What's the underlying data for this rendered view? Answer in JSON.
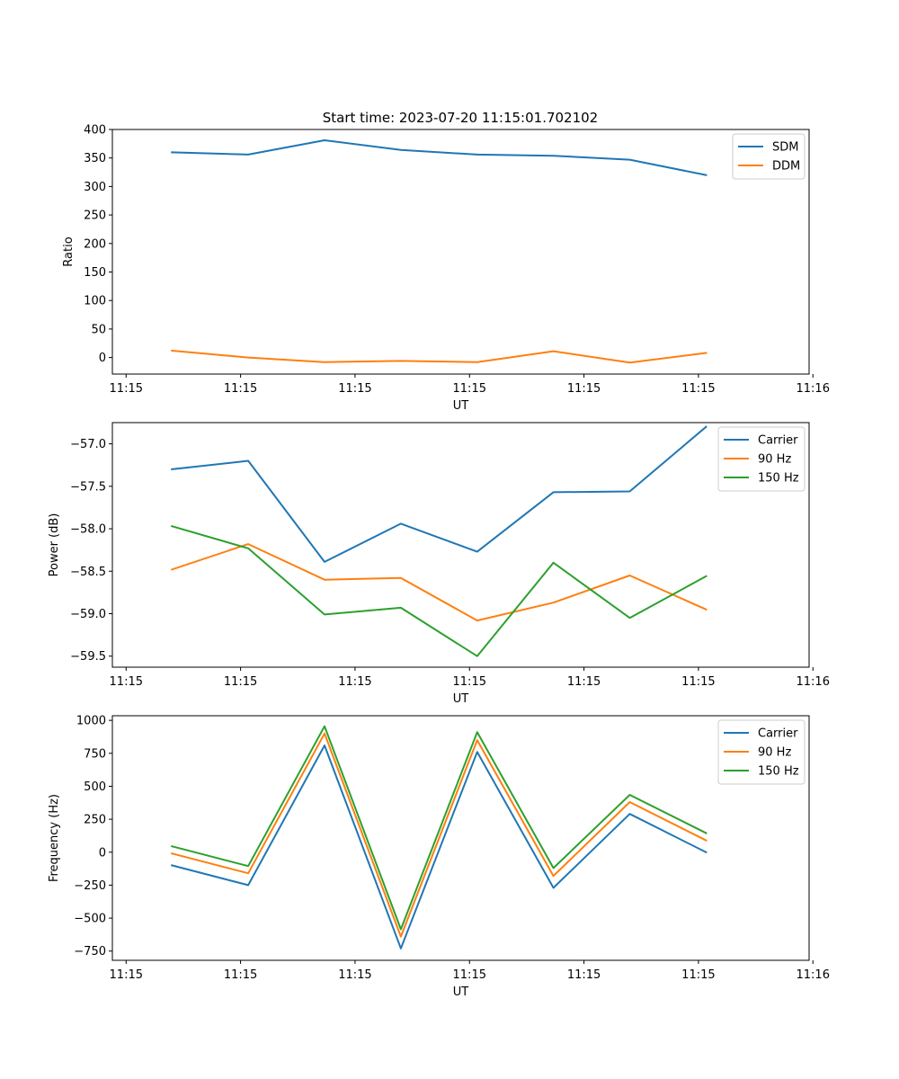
{
  "figure": {
    "title": "Start time: 2023-07-20 11:15:01.702102"
  },
  "chart_data": [
    {
      "type": "line",
      "xlabel": "UT",
      "ylabel": "Ratio",
      "x": [
        1.0,
        2.0,
        3.0,
        4.0,
        5.0,
        6.0,
        7.0,
        8.0
      ],
      "xlim": [
        0.22,
        9.35
      ],
      "x_ticks": [
        0.4,
        1.9,
        3.4,
        4.9,
        6.4,
        7.9,
        9.4
      ],
      "x_tick_labels": [
        "11:15",
        "11:15",
        "11:15",
        "11:15",
        "11:15",
        "11:15",
        "11:16"
      ],
      "ylim": [
        -29,
        400
      ],
      "y_ticks": [
        0,
        50,
        100,
        150,
        200,
        250,
        300,
        350,
        400
      ],
      "y_tick_labels": [
        "0",
        "50",
        "100",
        "150",
        "200",
        "250",
        "300",
        "350",
        "400"
      ],
      "legend": "top-right",
      "series": [
        {
          "name": "SDM",
          "color": "#1f77b4",
          "values": [
            360,
            356,
            381,
            364,
            356,
            354,
            347,
            320
          ]
        },
        {
          "name": "DDM",
          "color": "#ff7f0e",
          "values": [
            12,
            0,
            -8,
            -6,
            -8,
            11,
            -9,
            8
          ]
        }
      ]
    },
    {
      "type": "line",
      "xlabel": "UT",
      "ylabel": "Power (dB)",
      "x": [
        1.0,
        2.0,
        3.0,
        4.0,
        5.0,
        6.0,
        7.0,
        8.0
      ],
      "xlim": [
        0.22,
        9.35
      ],
      "x_ticks": [
        0.4,
        1.9,
        3.4,
        4.9,
        6.4,
        7.9,
        9.4
      ],
      "x_tick_labels": [
        "11:15",
        "11:15",
        "11:15",
        "11:15",
        "11:15",
        "11:15",
        "11:16"
      ],
      "ylim": [
        -59.63,
        -56.75
      ],
      "y_ticks": [
        -59.5,
        -59.0,
        -58.5,
        -58.0,
        -57.5,
        -57.0
      ],
      "y_tick_labels": [
        "−59.5",
        "−59.0",
        "−58.5",
        "−58.0",
        "−57.5",
        "−57.0"
      ],
      "legend": "top-right",
      "series": [
        {
          "name": "Carrier",
          "color": "#1f77b4",
          "values": [
            -57.3,
            -57.2,
            -58.39,
            -57.94,
            -58.27,
            -57.57,
            -57.56,
            -56.8
          ]
        },
        {
          "name": "90 Hz",
          "color": "#ff7f0e",
          "values": [
            -58.48,
            -58.18,
            -58.6,
            -58.58,
            -59.08,
            -58.87,
            -58.55,
            -58.95
          ]
        },
        {
          "name": "150 Hz",
          "color": "#2ca02c",
          "values": [
            -57.97,
            -58.23,
            -59.01,
            -58.93,
            -59.5,
            -58.4,
            -59.05,
            -58.56
          ]
        }
      ]
    },
    {
      "type": "line",
      "xlabel": "UT",
      "ylabel": "Frequency (Hz)",
      "x": [
        1.0,
        2.0,
        3.0,
        4.0,
        5.0,
        6.0,
        7.0,
        8.0
      ],
      "xlim": [
        0.22,
        9.35
      ],
      "x_ticks": [
        0.4,
        1.9,
        3.4,
        4.9,
        6.4,
        7.9,
        9.4
      ],
      "x_tick_labels": [
        "11:15",
        "11:15",
        "11:15",
        "11:15",
        "11:15",
        "11:15",
        "11:16"
      ],
      "ylim": [
        -820,
        1035
      ],
      "y_ticks": [
        -750,
        -500,
        -250,
        0,
        250,
        500,
        750,
        1000
      ],
      "y_tick_labels": [
        "−750",
        "−500",
        "−250",
        "0",
        "250",
        "500",
        "750",
        "1000"
      ],
      "legend": "top-right",
      "series": [
        {
          "name": "Carrier",
          "color": "#1f77b4",
          "values": [
            -100,
            -250,
            810,
            -730,
            760,
            -270,
            290,
            0
          ]
        },
        {
          "name": "90 Hz",
          "color": "#ff7f0e",
          "values": [
            -10,
            -160,
            900,
            -640,
            850,
            -180,
            380,
            90
          ]
        },
        {
          "name": "150 Hz",
          "color": "#2ca02c",
          "values": [
            45,
            -105,
            955,
            -585,
            910,
            -120,
            435,
            145
          ]
        }
      ]
    }
  ]
}
